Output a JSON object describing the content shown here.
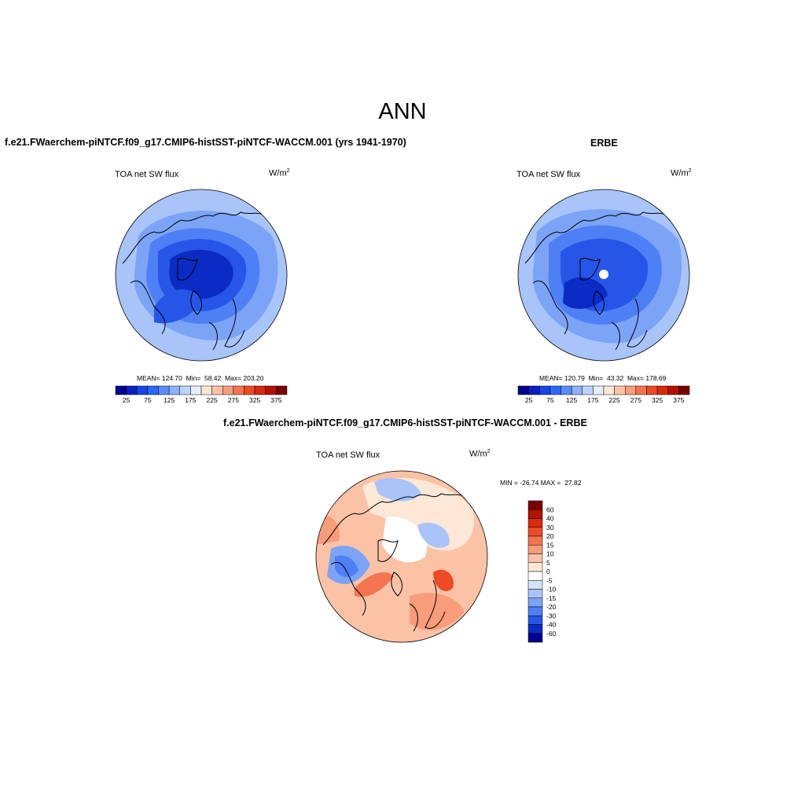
{
  "figure": {
    "title": "ANN"
  },
  "panels": [
    {
      "title": "f.e21.FWaerchem-piNTCF.f09_g17.CMIP6-histSST-piNTCF-WACCM.001 (yrs 1941-1970)",
      "variable": "TOA net SW flux",
      "units_base": "W/m",
      "units_exp": "2",
      "stats": "MEAN= 124.70  Min=  58.42  Max= 203.20",
      "colorbar": {
        "labels": [
          "25",
          "75",
          "125",
          "175",
          "225",
          "275",
          "325",
          "375"
        ],
        "colors": [
          "#02028f",
          "#0a1fbf",
          "#1446e6",
          "#2e66f5",
          "#5a8cf7",
          "#8db2f8",
          "#bcd3fa",
          "#e6effd",
          "#fde7d7",
          "#fbc2a6",
          "#f89c7a",
          "#f47450",
          "#ee4a26",
          "#d9290f",
          "#b31200",
          "#7a0000"
        ]
      }
    },
    {
      "title": "ERBE",
      "variable": "TOA net SW flux",
      "units_base": "W/m",
      "units_exp": "2",
      "stats": "MEAN= 120.79  Min=  43.32  Max= 178.69",
      "colorbar": {
        "labels": [
          "25",
          "75",
          "125",
          "175",
          "225",
          "275",
          "325",
          "375"
        ],
        "colors": [
          "#02028f",
          "#0a1fbf",
          "#1446e6",
          "#2e66f5",
          "#5a8cf7",
          "#8db2f8",
          "#bcd3fa",
          "#e6effd",
          "#fde7d7",
          "#fbc2a6",
          "#f89c7a",
          "#f47450",
          "#ee4a26",
          "#d9290f",
          "#b31200",
          "#7a0000"
        ]
      }
    },
    {
      "title": "f.e21.FWaerchem-piNTCF.f09_g17.CMIP6-histSST-piNTCF-WACCM.001 - ERBE",
      "variable": "TOA net SW flux",
      "units_base": "W/m",
      "units_exp": "2",
      "stats": "MIN = -26.74 MAX =  27.82",
      "colorbar": {
        "labels": [
          "60",
          "40",
          "30",
          "20",
          "15",
          "10",
          "5",
          "0",
          "-5",
          "-10",
          "-15",
          "-20",
          "-30",
          "-40",
          "-60"
        ],
        "colors": [
          "#7a0000",
          "#b31200",
          "#d9290f",
          "#ee4a26",
          "#f47450",
          "#f89c7a",
          "#fbc2a6",
          "#fde7d7",
          "#ffffff",
          "#d4e3fb",
          "#a8c4f8",
          "#7ba3f6",
          "#4f7ff4",
          "#2655e8",
          "#0a2bc4",
          "#02028f"
        ]
      }
    }
  ]
}
